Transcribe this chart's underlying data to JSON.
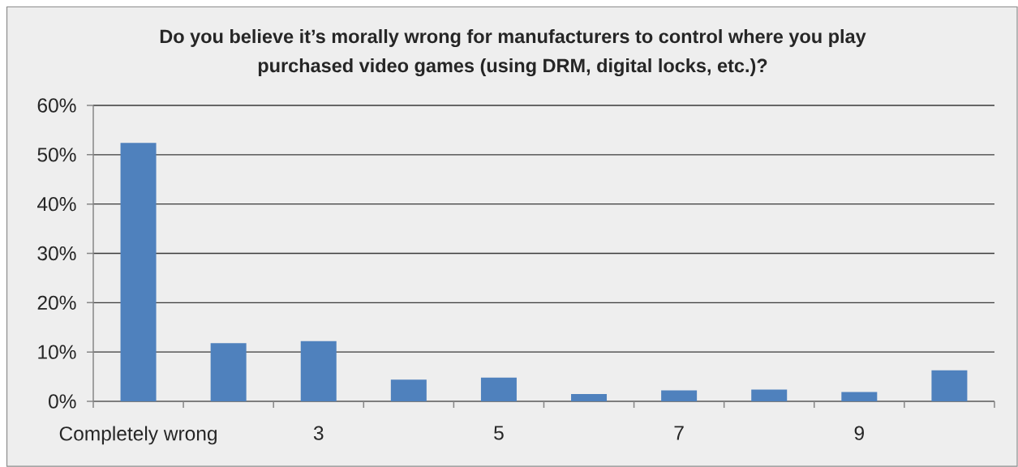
{
  "chart_data": {
    "type": "bar",
    "title": "Do you believe it’s morally wrong for manufacturers to control where you play purchased video games (using DRM, digital locks, etc.)?",
    "categories": [
      "Completely wrong",
      null,
      "3",
      null,
      "5",
      null,
      "7",
      null,
      "9",
      null
    ],
    "values": [
      52.4,
      11.8,
      12.2,
      4.4,
      4.8,
      1.5,
      2.2,
      2.4,
      1.9,
      6.3
    ],
    "color": "#4f81bd",
    "ylim": [
      0,
      60
    ],
    "yticks": [
      {
        "value": 0,
        "label": "0%"
      },
      {
        "value": 10,
        "label": "10%"
      },
      {
        "value": 20,
        "label": "20%"
      },
      {
        "value": 30,
        "label": "30%"
      },
      {
        "value": 40,
        "label": "40%"
      },
      {
        "value": 50,
        "label": "50%"
      },
      {
        "value": 60,
        "label": "60%"
      }
    ],
    "grid": "y"
  }
}
